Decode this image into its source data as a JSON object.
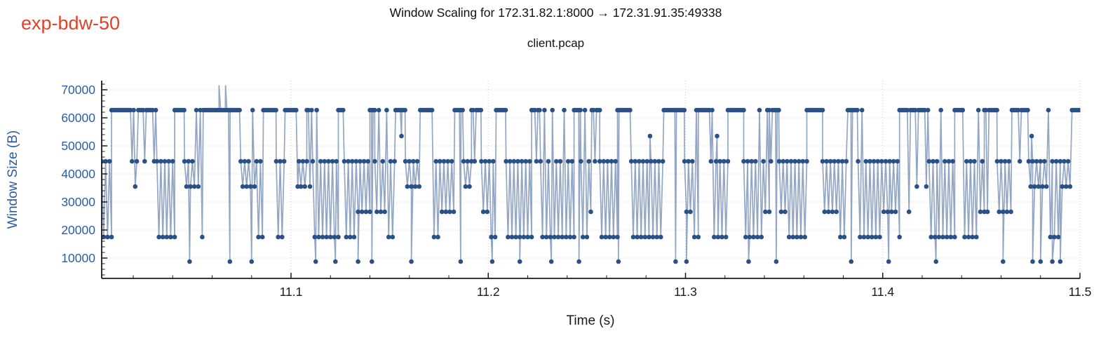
{
  "annotation": {
    "text": "exp-bdw-50",
    "color": "#e04228"
  },
  "colors": {
    "marker": "#2a5185",
    "line": "rgba(58,92,148,0.55)",
    "axis": "#1a1a1a",
    "grid": "#cdcdcd",
    "y_text": "#2d5ba3",
    "x_text": "#1a1a1a",
    "title_text": "#111111"
  },
  "chart_data": {
    "type": "line",
    "title": "Window Scaling for 172.31.82.1:8000 → 172.31.91.35:49338",
    "subtitle": "client.pcap",
    "xlabel": "Time (s)",
    "ylabel": "Window Size (B)",
    "xlim": [
      11.004,
      11.5
    ],
    "ylim": [
      2750,
      73250
    ],
    "x_major_ticks": [
      11.1,
      11.2,
      11.3,
      11.4,
      11.5
    ],
    "x_major_tick_labels": [
      "11.1",
      "11.2",
      "11.3",
      "11.4",
      "11.5"
    ],
    "x_minor_step": 0.02,
    "y_major_ticks": [
      10000,
      20000,
      30000,
      40000,
      50000,
      60000,
      70000
    ],
    "y_major_tick_labels": [
      "10000",
      "20000",
      "30000",
      "40000",
      "50000",
      "60000",
      "70000"
    ],
    "y_minor_step": 2000,
    "grid": "dotted at major ticks, horizontal and vertical",
    "legend": "none",
    "marker": "circle",
    "window_levels": [
      8750,
      17500,
      26500,
      35500,
      44500,
      53500,
      62750
    ],
    "sampling": {
      "seed": 42,
      "hi_value": 62750,
      "hi_dt": 0.0008,
      "hi_dip_prob": 0.055,
      "comb_dt": 0.001,
      "comb_high": 44500,
      "comb_high_spike_value": 62750,
      "comb_high_spike_prob": 0.13,
      "comb_lows": [
        17500,
        26500,
        35500
      ],
      "comb_low_probs": [
        0.58,
        0.22,
        0.2
      ]
    },
    "segments": [
      [
        11.004,
        11.009,
        "comb"
      ],
      [
        11.009,
        11.032,
        "hi"
      ],
      [
        11.032,
        11.041,
        "comb"
      ],
      [
        11.041,
        11.046,
        "hi"
      ],
      [
        11.046,
        11.0555,
        "comb"
      ],
      [
        11.0555,
        11.0745,
        "hi"
      ],
      [
        11.0745,
        11.086,
        "comb"
      ],
      [
        11.086,
        11.0925,
        "hi"
      ],
      [
        11.0925,
        11.097,
        "comb"
      ],
      [
        11.097,
        11.104,
        "hi"
      ],
      [
        11.104,
        11.108,
        "comb"
      ],
      [
        11.108,
        11.111,
        "hi"
      ],
      [
        11.111,
        11.124,
        "comb"
      ],
      [
        11.124,
        11.127,
        "hi"
      ],
      [
        11.127,
        11.14,
        "comb"
      ],
      [
        11.14,
        11.1425,
        "hi"
      ],
      [
        11.1425,
        11.153,
        "comb"
      ],
      [
        11.153,
        11.158,
        "hi"
      ],
      [
        11.158,
        11.1655,
        "comb"
      ],
      [
        11.1655,
        11.1715,
        "hi"
      ],
      [
        11.1715,
        11.183,
        "comb"
      ],
      [
        11.183,
        11.1875,
        "hi"
      ],
      [
        11.1875,
        11.1915,
        "comb"
      ],
      [
        11.1915,
        11.1965,
        "hi"
      ],
      [
        11.1965,
        11.204,
        "comb"
      ],
      [
        11.204,
        11.209,
        "hi"
      ],
      [
        11.209,
        11.222,
        "comb"
      ],
      [
        11.222,
        11.2265,
        "hi"
      ],
      [
        11.2265,
        11.2435,
        "comb"
      ],
      [
        11.2435,
        11.247,
        "hi"
      ],
      [
        11.247,
        11.2525,
        "comb"
      ],
      [
        11.2525,
        11.2565,
        "hi"
      ],
      [
        11.2565,
        11.2655,
        "comb"
      ],
      [
        11.2655,
        11.2725,
        "hi"
      ],
      [
        11.2725,
        11.289,
        "comb"
      ],
      [
        11.289,
        11.2995,
        "hi"
      ],
      [
        11.2995,
        11.3065,
        "comb"
      ],
      [
        11.3065,
        11.3135,
        "hi"
      ],
      [
        11.3135,
        11.3215,
        "comb"
      ],
      [
        11.3215,
        11.3295,
        "hi"
      ],
      [
        11.3295,
        11.3425,
        "comb"
      ],
      [
        11.3425,
        11.3475,
        "hi"
      ],
      [
        11.3475,
        11.3615,
        "comb"
      ],
      [
        11.3615,
        11.3695,
        "hi"
      ],
      [
        11.3695,
        11.3815,
        "comb"
      ],
      [
        11.3815,
        11.3875,
        "hi"
      ],
      [
        11.3875,
        11.4085,
        "comb"
      ],
      [
        11.4085,
        11.4235,
        "hi"
      ],
      [
        11.4235,
        11.4365,
        "comb"
      ],
      [
        11.4365,
        11.4405,
        "hi"
      ],
      [
        11.4405,
        11.4515,
        "comb"
      ],
      [
        11.4515,
        11.458,
        "hi"
      ],
      [
        11.458,
        11.4655,
        "comb"
      ],
      [
        11.4655,
        11.474,
        "hi"
      ],
      [
        11.474,
        11.4965,
        "comb"
      ],
      [
        11.4965,
        11.5,
        "hi"
      ]
    ],
    "deep_dips": {
      "value": 8750,
      "times": [
        11.0486,
        11.069,
        11.08,
        11.1125,
        11.1225,
        11.134,
        11.141,
        11.161,
        11.186,
        11.202,
        11.216,
        11.232,
        11.246,
        11.266,
        11.295,
        11.3005,
        11.332,
        11.346,
        11.384,
        11.403,
        11.427,
        11.461,
        11.476,
        11.48,
        11.486,
        11.49
      ]
    },
    "mid_level_points": {
      "value": 53500,
      "times": [
        11.156,
        11.282,
        11.316,
        11.4755
      ]
    },
    "clipped_spikes": {
      "value": 71600,
      "times": [
        11.0635,
        11.0668
      ]
    }
  }
}
